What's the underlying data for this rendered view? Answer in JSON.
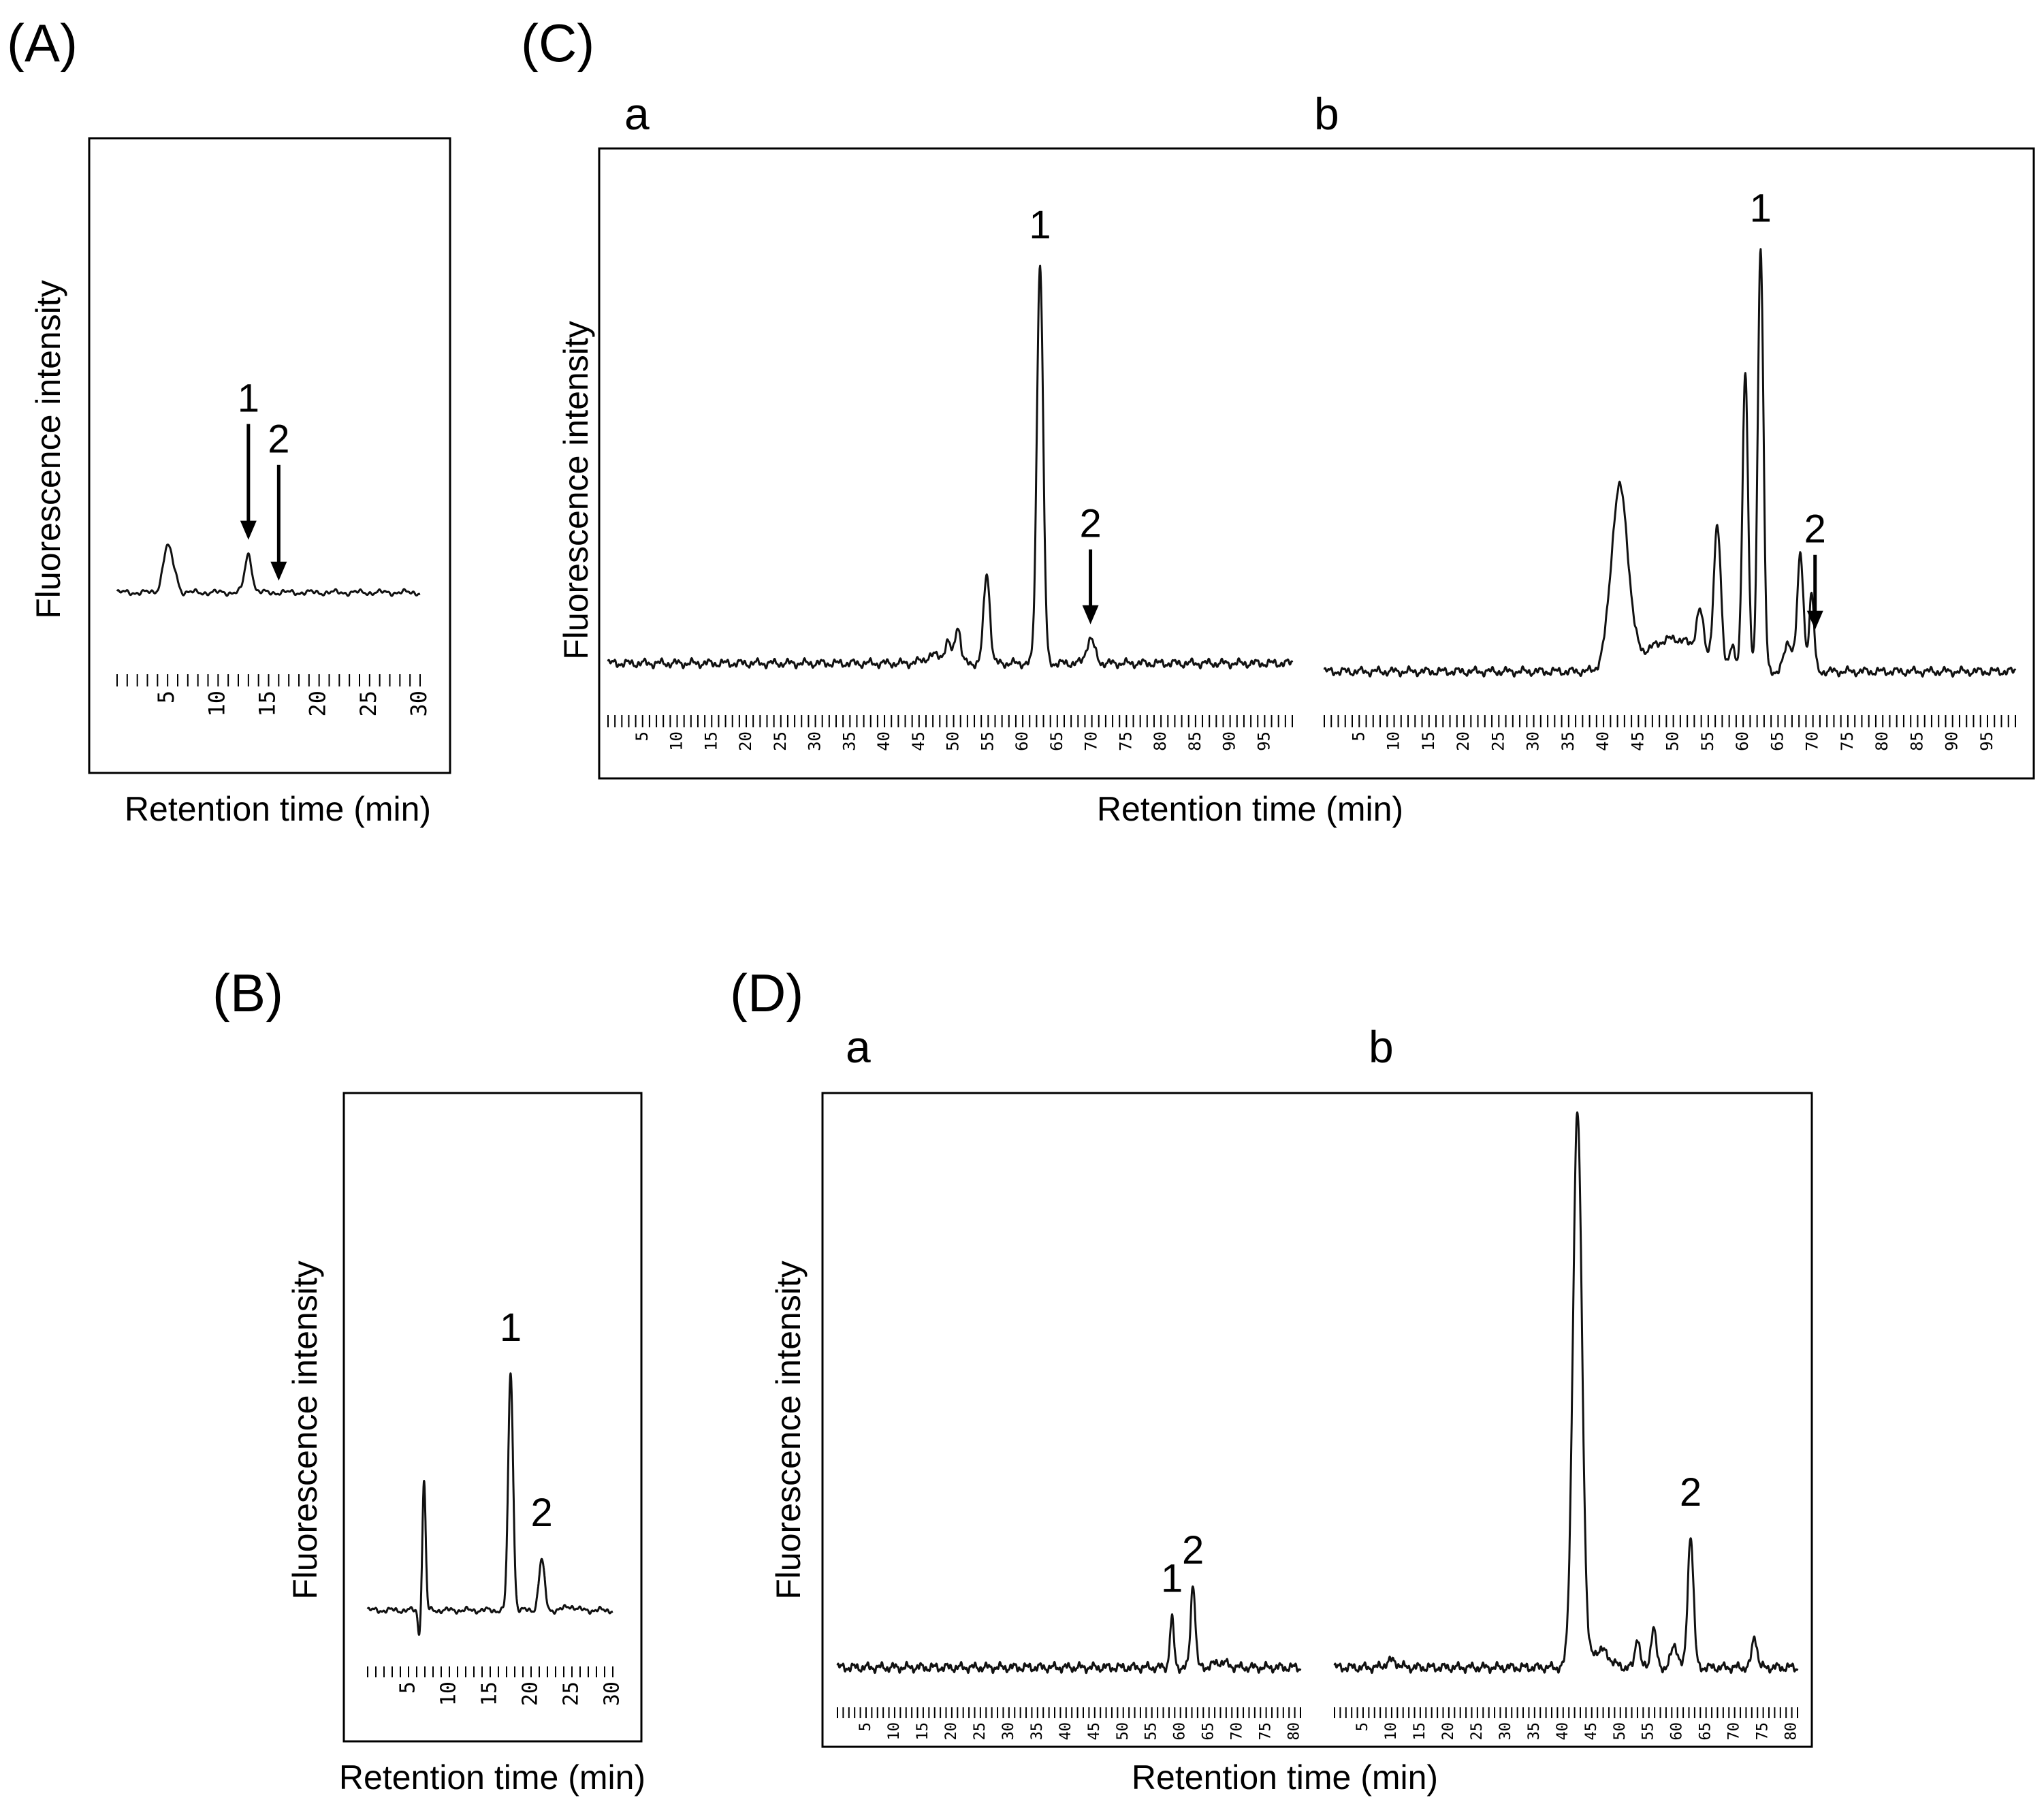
{
  "figure": {
    "panels": [
      {
        "id": "A",
        "label": "(A)",
        "ylabel": "Fluorescence intensity",
        "xlabel": "Retention time (min)"
      },
      {
        "id": "B",
        "label": "(B)",
        "ylabel": "Fluorescence intensity",
        "xlabel": "Retention time (min)"
      },
      {
        "id": "C",
        "label": "(C)",
        "ylabel": "Fluorescence intensity",
        "xlabel": "Retention time (min)"
      },
      {
        "id": "D",
        "label": "(D)",
        "ylabel": "Fluorescence intensity",
        "xlabel": "Retention time (min)"
      }
    ]
  },
  "chart_data": [
    {
      "type": "line",
      "panel": "A",
      "title": "(A)",
      "xlabel": "Retention time (min)",
      "ylabel": "Fluorescence intensity",
      "xlim": [
        0,
        30
      ],
      "xticks": [
        "5",
        "10",
        "15",
        "20",
        "25",
        "30"
      ],
      "baseline": 5,
      "peaks": [
        [
          5.0,
          17,
          0.45
        ],
        [
          5.8,
          4,
          0.3
        ],
        [
          13.0,
          14,
          0.35
        ]
      ],
      "annotations": [
        {
          "label": "1",
          "x": 13.0,
          "arrow": true
        },
        {
          "label": "2",
          "x": 16.0,
          "arrow": true
        }
      ]
    },
    {
      "type": "line",
      "panel": "B",
      "title": "(B)",
      "xlabel": "Retention time (min)",
      "ylabel": "Fluorescence intensity",
      "xlim": [
        0,
        30
      ],
      "xticks": [
        "5",
        "10",
        "15",
        "20",
        "25",
        "30"
      ],
      "baseline": 5,
      "peaks": [
        [
          6.3,
          -9,
          0.15
        ],
        [
          6.9,
          46,
          0.2
        ],
        [
          17.5,
          85,
          0.3
        ],
        [
          21.3,
          18,
          0.35
        ],
        [
          24.8,
          1.5,
          0.6
        ]
      ],
      "annotations": [
        {
          "label": "1",
          "x": 17.5,
          "arrow": false
        },
        {
          "label": "2",
          "x": 21.3,
          "arrow": false
        }
      ]
    },
    {
      "type": "line",
      "panel": "C",
      "title": "(C)",
      "xlabel": "Retention time (min)",
      "ylabel": "Fluorescence intensity",
      "subplots": [
        {
          "name": "a",
          "xlim": [
            0,
            99
          ],
          "xticks": [
            "5",
            "10",
            "15",
            "20",
            "25",
            "30",
            "35",
            "40",
            "45",
            "50",
            "55",
            "60",
            "65",
            "70",
            "75",
            "80",
            "85",
            "90",
            "95"
          ],
          "baseline": 3,
          "peaks": [
            [
              47.5,
              2,
              1.5
            ],
            [
              49.2,
              4,
              0.4
            ],
            [
              50.6,
              9,
              0.4
            ],
            [
              54.8,
              22,
              0.45
            ],
            [
              62.5,
              98,
              0.45
            ],
            [
              69.8,
              6,
              0.6
            ]
          ],
          "annotations": [
            {
              "label": "1",
              "x": 62.5,
              "arrow": false
            },
            {
              "label": "2",
              "x": 69.8,
              "arrow": true
            }
          ]
        },
        {
          "name": "b",
          "xlim": [
            0,
            99
          ],
          "xticks": [
            "5",
            "10",
            "15",
            "20",
            "25",
            "30",
            "35",
            "40",
            "45",
            "50",
            "55",
            "60",
            "65",
            "70",
            "75",
            "80",
            "85",
            "90",
            "95"
          ],
          "baseline": 1,
          "peaks": [
            [
              42.3,
              44,
              1.2
            ],
            [
              50,
              8,
              4
            ],
            [
              53.8,
              10,
              0.5
            ],
            [
              56.3,
              33,
              0.5
            ],
            [
              58.4,
              5,
              0.4
            ],
            [
              60.3,
              73,
              0.4
            ],
            [
              62.5,
              104,
              0.4
            ],
            [
              66.5,
              7,
              0.6
            ],
            [
              68.2,
              28,
              0.45
            ],
            [
              69.8,
              19,
              0.35
            ]
          ],
          "annotations": [
            {
              "label": "1",
              "x": 62.5,
              "arrow": false
            },
            {
              "label": "2",
              "x": 70.3,
              "arrow": true
            }
          ]
        }
      ]
    },
    {
      "type": "line",
      "panel": "D",
      "title": "(D)",
      "xlabel": "Retention time (min)",
      "ylabel": "Fluorescence intensity",
      "subplots": [
        {
          "name": "a",
          "xlim": [
            0,
            81
          ],
          "xticks": [
            "5",
            "10",
            "15",
            "20",
            "25",
            "30",
            "35",
            "40",
            "45",
            "50",
            "55",
            "60",
            "65",
            "70",
            "75",
            "80"
          ],
          "baseline": 1,
          "peaks": [
            [
              58.5,
              11,
              0.35
            ],
            [
              62.2,
              19,
              0.4
            ],
            [
              67,
              1.2,
              1.2
            ]
          ],
          "annotations": [
            {
              "label": "1",
              "x": 58.5,
              "arrow": false
            },
            {
              "label": "2",
              "x": 62.2,
              "arrow": false
            }
          ]
        },
        {
          "name": "b",
          "xlim": [
            0,
            81
          ],
          "xticks": [
            "5",
            "10",
            "15",
            "20",
            "25",
            "30",
            "35",
            "40",
            "45",
            "50",
            "55",
            "60",
            "65",
            "70",
            "75",
            "80"
          ],
          "baseline": 1,
          "peaks": [
            [
              10,
              1.5,
              1
            ],
            [
              42.5,
              125,
              0.8
            ],
            [
              46.5,
              4,
              1.5
            ],
            [
              53,
              7,
              0.4
            ],
            [
              55.8,
              9,
              0.45
            ],
            [
              59.5,
              5,
              0.6
            ],
            [
              62.3,
              30,
              0.5
            ],
            [
              73.5,
              7,
              0.45
            ]
          ],
          "annotations": [
            {
              "label": "2",
              "x": 62.3,
              "arrow": false
            }
          ]
        }
      ]
    }
  ]
}
